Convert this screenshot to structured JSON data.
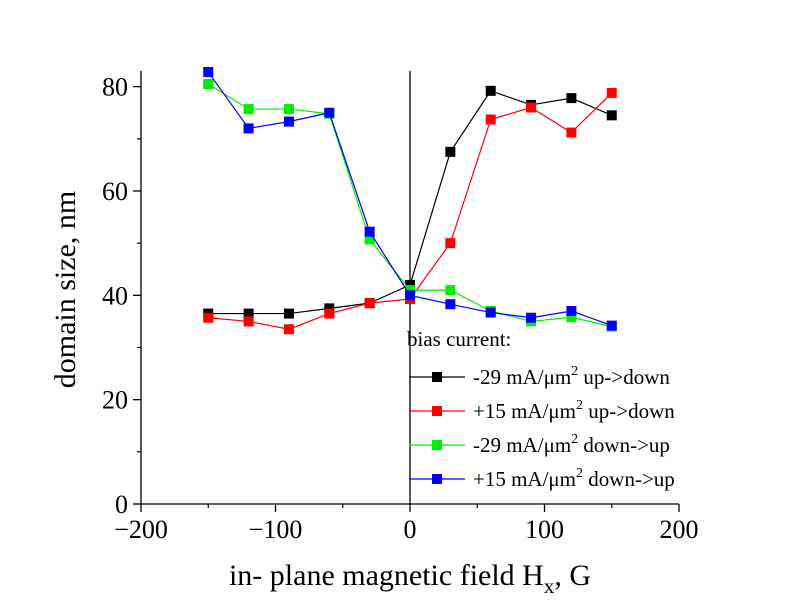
{
  "chart_data": {
    "type": "line",
    "xlabel": "in- plane magnetic field H",
    "xlabel_sub": "x",
    "xlabel_suffix": ", G",
    "ylabel": "domain size, nm",
    "xlim": [
      -200,
      200
    ],
    "ylim": [
      0,
      83
    ],
    "xticks": [
      -200,
      -100,
      0,
      100,
      200
    ],
    "yticks": [
      0,
      20,
      40,
      60,
      80
    ],
    "grid": false,
    "legend_title": "bias current:",
    "legend_position": "bottom-right",
    "series": [
      {
        "name": "-29 mA/μm",
        "sup": "2",
        "suffix": " up->down",
        "color": "#000000",
        "x": [
          -150,
          -120,
          -90,
          -60,
          -30,
          0,
          30,
          60,
          90,
          120,
          150
        ],
        "y": [
          36.5,
          36.5,
          36.5,
          37.5,
          38.5,
          42,
          67.5,
          79.2,
          76.5,
          77.8,
          74.5
        ]
      },
      {
        "name": "+15 mA/μm",
        "sup": "2",
        "suffix": " up->down",
        "color": "#ff0000",
        "x": [
          -150,
          -120,
          -90,
          -60,
          -30,
          0,
          30,
          60,
          90,
          120,
          150
        ],
        "y": [
          35.7,
          35,
          33.5,
          36.5,
          38.5,
          39.3,
          50,
          73.7,
          76,
          71.2,
          78.8
        ]
      },
      {
        "name": "-29 mA/μm",
        "sup": "2",
        "suffix": " down->up",
        "color": "#00ee00",
        "x": [
          -150,
          -120,
          -90,
          -60,
          -30,
          0,
          30,
          60,
          90,
          120,
          150
        ],
        "y": [
          80.5,
          75.7,
          75.7,
          74.8,
          50.7,
          41,
          41,
          37,
          35,
          35.8,
          34
        ]
      },
      {
        "name": "+15 mA/μm",
        "sup": "2",
        "suffix": " down->up",
        "color": "#0000ff",
        "x": [
          -150,
          -120,
          -90,
          -60,
          -30,
          0,
          30,
          60,
          90,
          120,
          150
        ],
        "y": [
          82.8,
          72,
          73.3,
          75,
          52.2,
          40,
          38.3,
          36.7,
          35.7,
          37,
          34.2
        ]
      }
    ]
  }
}
